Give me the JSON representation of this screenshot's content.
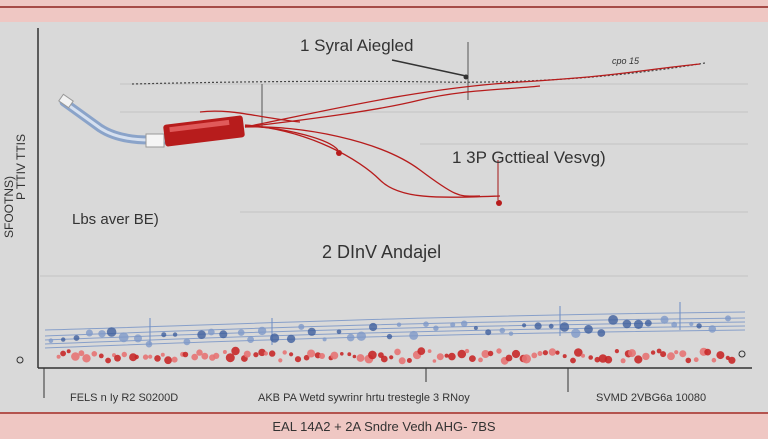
{
  "chart_data": {
    "type": "line",
    "annotations": [
      "1 Syral Aiegled",
      "cpo 15",
      "1 3P Gcttieal Vesvg)",
      "Lbs aver BE)",
      "2 DInV Andajel"
    ],
    "ylabel": "P TTIV TTIS",
    "ylabel_secondary": "SFOOTNS)",
    "x_tick_labels": [
      "FELS n Iy R2 S0200D",
      "AKB PA Wetd sywrinr hrtu trestegle 3 RNoy",
      "SVMD 2VBG6a 10080"
    ],
    "footer": "EAL 14A2 + 2A Sndre Vedh AHG- 7BS",
    "colors": {
      "background": "#d9d9d9",
      "red": "#b71c1c",
      "blue": "#4a6aa8",
      "band": "#efc7c3"
    }
  }
}
